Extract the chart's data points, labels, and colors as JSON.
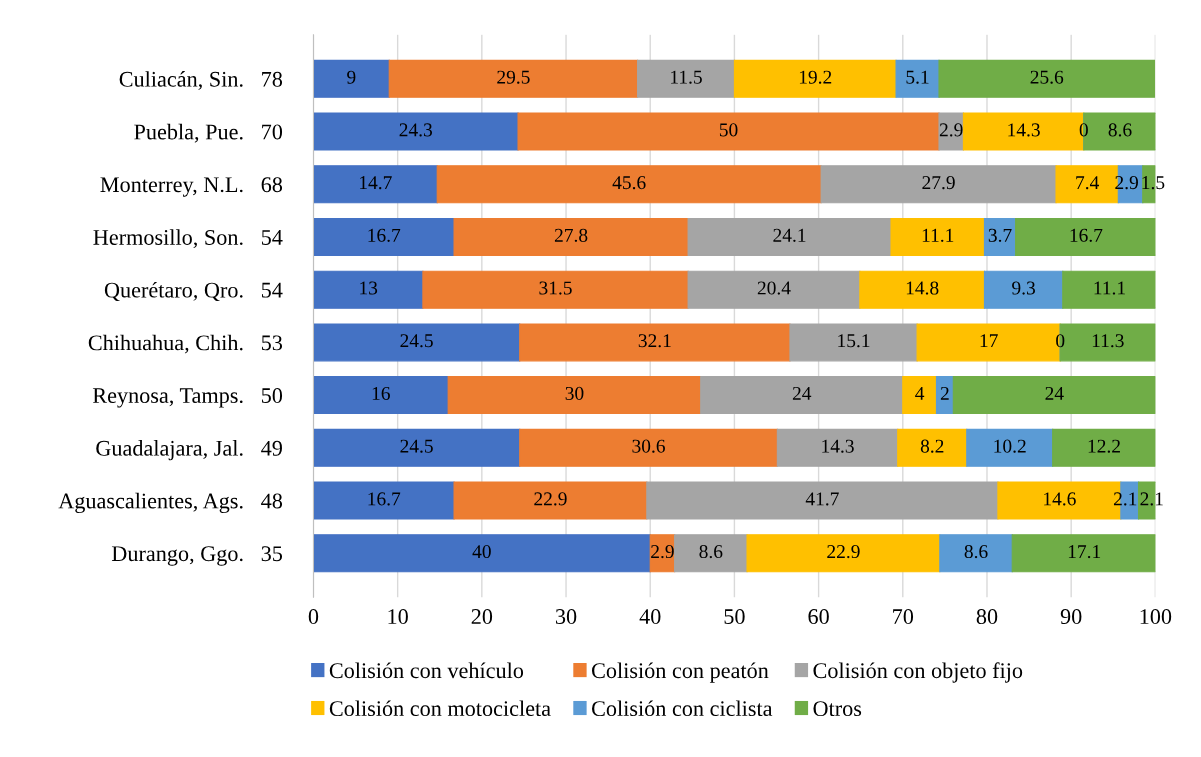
{
  "chart_data": {
    "type": "bar",
    "orientation": "horizontal",
    "stacked": true,
    "data_labels": true,
    "grid": "x",
    "legend": "bottom",
    "categories": [
      "Culiacán, Sin.   78",
      "Puebla, Pue.   70",
      "Monterrey, N.L.   68",
      "Hermosillo, Son.   54",
      "Querétaro, Qro.   54",
      "Chihuahua, Chih.   53",
      "Reynosa, Tamps.   50",
      "Guadalajara, Jal.   49",
      "Aguascalientes, Ags.   48",
      "Durango, Ggo.   35"
    ],
    "xlim": [
      0,
      100
    ],
    "xticks": [
      0,
      10,
      20,
      30,
      40,
      50,
      60,
      70,
      80,
      90,
      100
    ],
    "series": [
      {
        "name": "Colisión con vehículo",
        "color": "#4472c4",
        "values": [
          9,
          24.3,
          14.7,
          16.7,
          13,
          24.5,
          16,
          24.5,
          16.7,
          40
        ]
      },
      {
        "name": "Colisión con peatón",
        "color": "#ed7d31",
        "values": [
          29.5,
          50,
          45.6,
          27.8,
          31.5,
          32.1,
          30,
          30.6,
          22.9,
          2.9
        ]
      },
      {
        "name": "Colisión con objeto fijo",
        "color": "#a5a5a5",
        "values": [
          11.5,
          2.9,
          27.9,
          24.1,
          20.4,
          15.1,
          24,
          14.3,
          41.7,
          8.6
        ]
      },
      {
        "name": "Colisión con motocicleta",
        "color": "#ffc000",
        "values": [
          19.2,
          14.3,
          7.4,
          11.1,
          14.8,
          17,
          4,
          8.2,
          14.6,
          22.9
        ]
      },
      {
        "name": "Colisión con ciclista",
        "color": "#5b9bd5",
        "values": [
          5.1,
          0,
          2.9,
          3.7,
          9.3,
          0,
          2,
          10.2,
          2.1,
          8.6
        ]
      },
      {
        "name": "Otros",
        "color": "#70ad47",
        "values": [
          25.6,
          8.6,
          1.5,
          16.7,
          11.1,
          11.3,
          24,
          12.2,
          2.1,
          17.1
        ]
      }
    ]
  }
}
